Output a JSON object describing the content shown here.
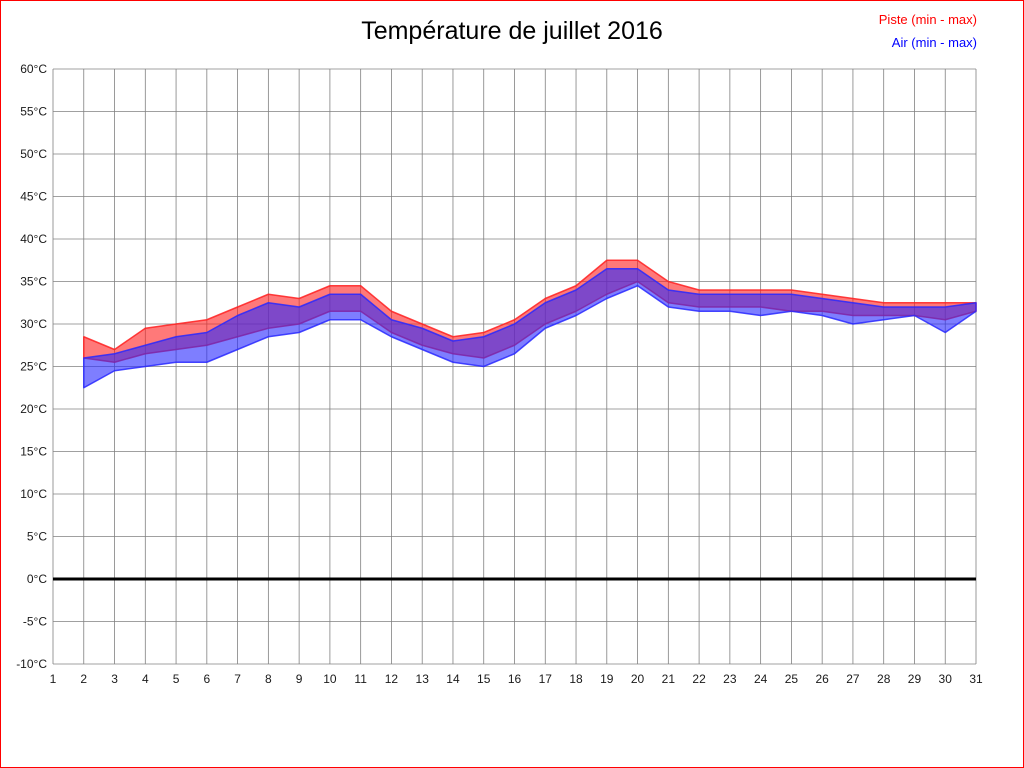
{
  "page": {
    "border_color": "#ff0000",
    "background": "#ffffff"
  },
  "legend": {
    "piste_label": "Piste (min - max)",
    "piste_color": "#ff0000",
    "air_label": "Air (min - max)",
    "air_color": "#0000ff"
  },
  "chart_data": {
    "type": "area",
    "title": "Température de juillet 2016",
    "y_unit": "°C",
    "ylim": [
      -10,
      60
    ],
    "y_ticks": [
      60,
      55,
      50,
      45,
      40,
      35,
      30,
      25,
      20,
      15,
      10,
      5,
      0,
      -5,
      -10
    ],
    "x_ticks": [
      1,
      2,
      3,
      4,
      5,
      6,
      7,
      8,
      9,
      10,
      11,
      12,
      13,
      14,
      15,
      16,
      17,
      18,
      19,
      20,
      21,
      22,
      23,
      24,
      25,
      26,
      27,
      28,
      29,
      30,
      31
    ],
    "grid": true,
    "legend_position": "top-right",
    "zero_line": {
      "value": 0,
      "color": "#000000",
      "width": 3
    },
    "x": [
      2,
      3,
      4,
      5,
      6,
      7,
      8,
      9,
      10,
      11,
      12,
      13,
      14,
      15,
      16,
      17,
      18,
      19,
      20,
      21,
      22,
      23,
      24,
      25,
      26,
      27,
      28,
      29,
      30,
      31
    ],
    "series": [
      {
        "id": "piste",
        "name": "Piste (min - max)",
        "color": "#ff2020",
        "max": [
          28.5,
          27.0,
          29.5,
          30.0,
          30.5,
          32.0,
          33.5,
          33.0,
          34.5,
          34.5,
          31.5,
          30.0,
          28.5,
          29.0,
          30.5,
          33.0,
          34.5,
          37.5,
          37.5,
          35.0,
          34.0,
          34.0,
          34.0,
          34.0,
          33.5,
          33.0,
          32.5,
          32.5,
          32.5,
          32.5
        ],
        "min": [
          26.0,
          25.5,
          26.5,
          27.0,
          27.5,
          28.5,
          29.5,
          30.0,
          31.5,
          31.5,
          29.0,
          27.5,
          26.5,
          26.0,
          27.5,
          30.0,
          31.5,
          33.5,
          35.0,
          32.5,
          32.0,
          32.0,
          32.0,
          31.5,
          31.5,
          31.0,
          31.0,
          31.0,
          30.5,
          31.5
        ]
      },
      {
        "id": "air",
        "name": "Air (min - max)",
        "color": "#2828ff",
        "max": [
          26.0,
          26.5,
          27.5,
          28.5,
          29.0,
          31.0,
          32.5,
          32.0,
          33.5,
          33.5,
          30.5,
          29.5,
          28.0,
          28.5,
          30.0,
          32.5,
          34.0,
          36.5,
          36.5,
          34.0,
          33.5,
          33.5,
          33.5,
          33.5,
          33.0,
          32.5,
          32.0,
          32.0,
          32.0,
          32.5
        ],
        "min": [
          22.5,
          24.5,
          25.0,
          25.5,
          25.5,
          27.0,
          28.5,
          29.0,
          30.5,
          30.5,
          28.5,
          27.0,
          25.5,
          25.0,
          26.5,
          29.5,
          31.0,
          33.0,
          34.5,
          32.0,
          31.5,
          31.5,
          31.0,
          31.5,
          31.0,
          30.0,
          30.5,
          31.0,
          29.0,
          31.5
        ]
      }
    ]
  }
}
